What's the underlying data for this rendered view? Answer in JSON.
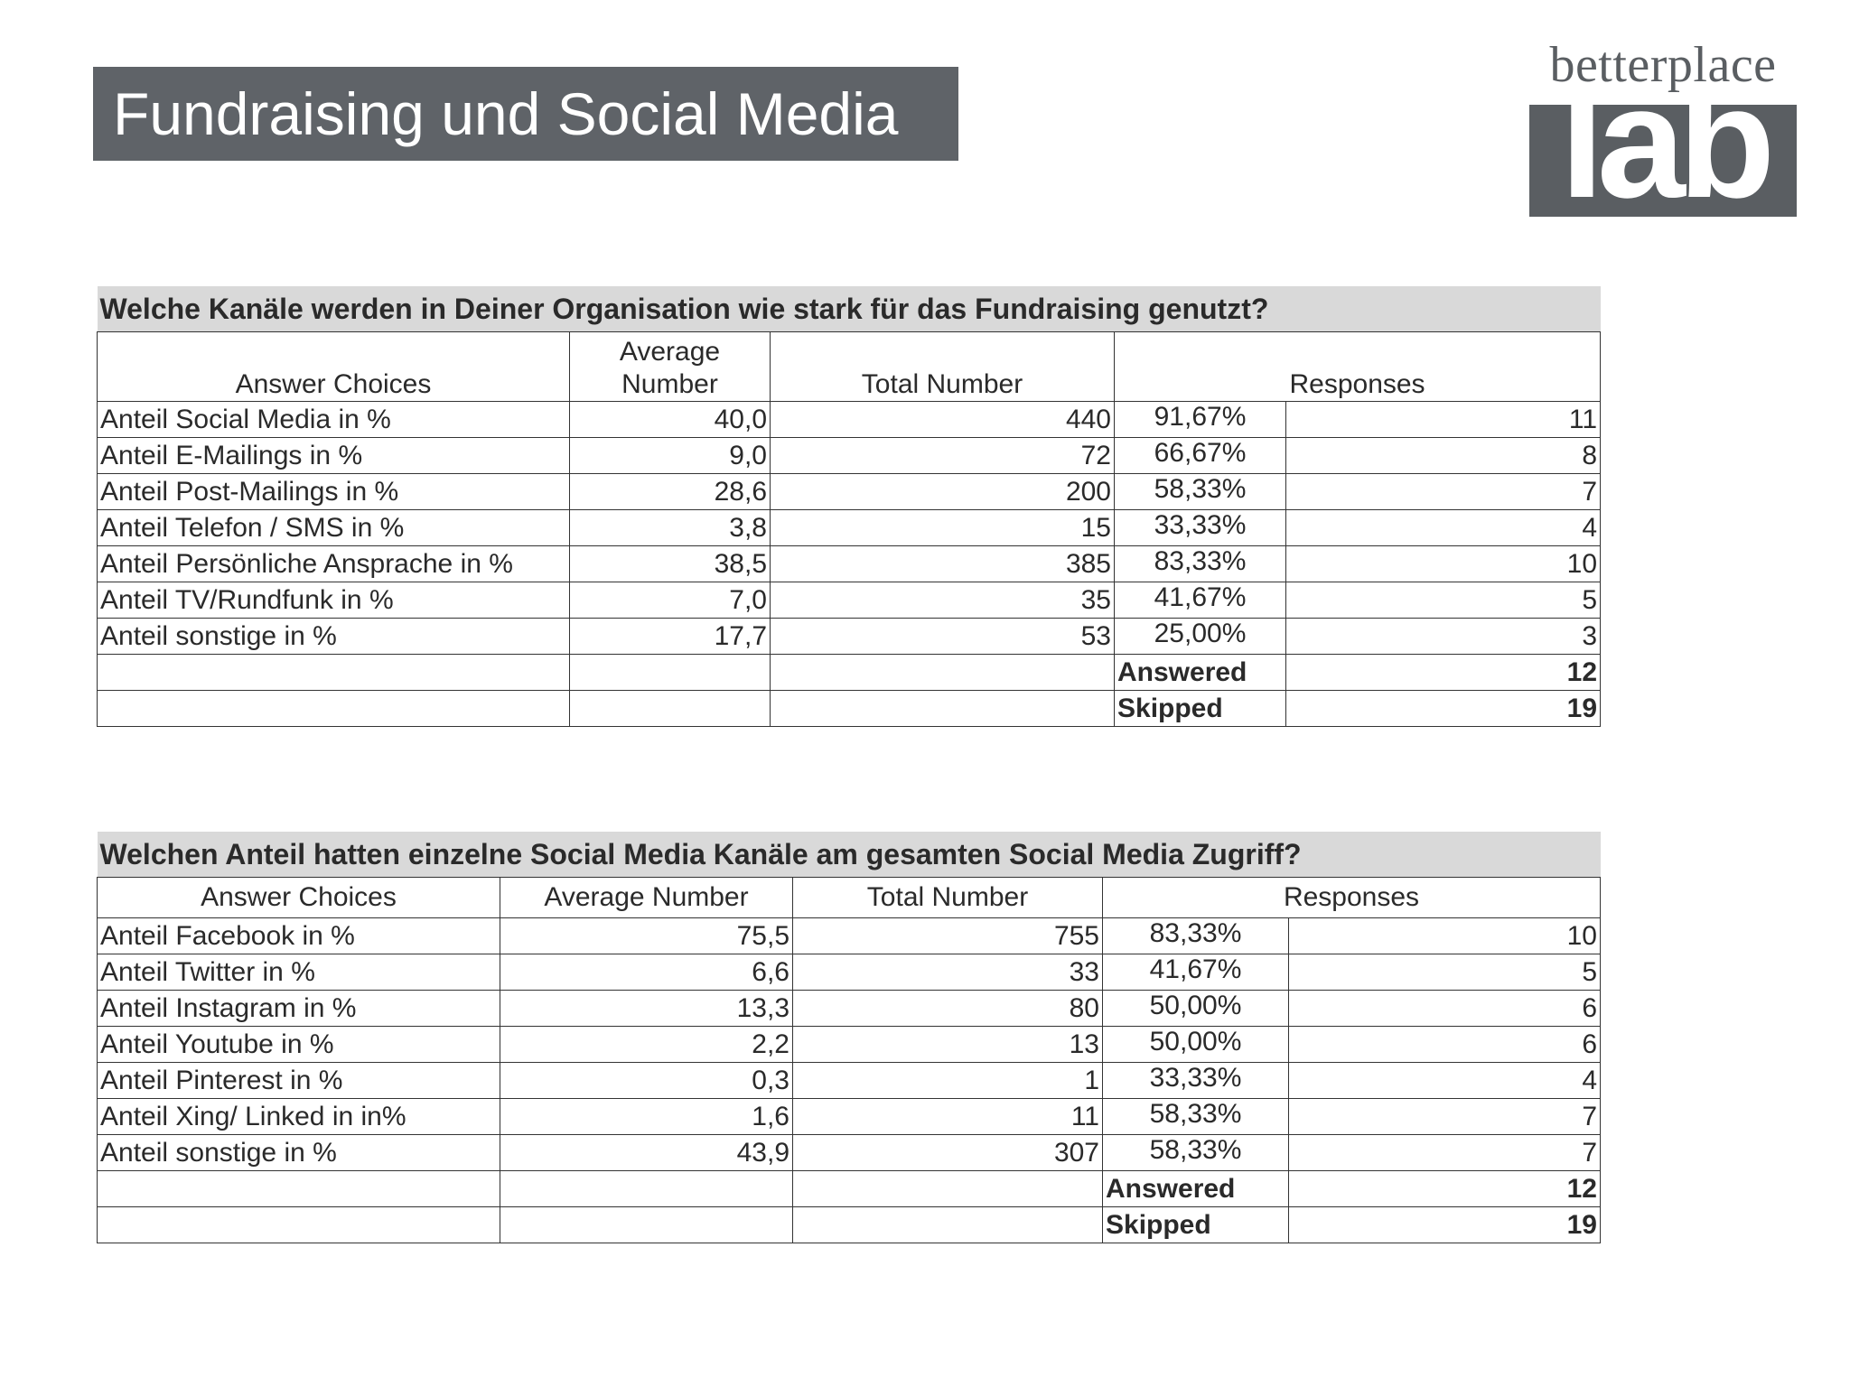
{
  "header": {
    "title": "Fundraising und Social Media"
  },
  "logo": {
    "word": "betterplace",
    "box_text": "lab"
  },
  "table1": {
    "question": "Welche Kanäle werden in Deiner Organisation wie stark für das Fundraising genutzt?",
    "headers": [
      "Answer Choices",
      "Average Number",
      "Total Number",
      "Responses"
    ],
    "rows": [
      {
        "choice": "Anteil Social Media in %",
        "avg": "40,0",
        "total": "440",
        "pct": "91,67%",
        "count": "11"
      },
      {
        "choice": "Anteil E-Mailings in %",
        "avg": "9,0",
        "total": "72",
        "pct": "66,67%",
        "count": "8"
      },
      {
        "choice": "Anteil Post-Mailings in %",
        "avg": "28,6",
        "total": "200",
        "pct": "58,33%",
        "count": "7"
      },
      {
        "choice": "Anteil Telefon / SMS in %",
        "avg": "3,8",
        "total": "15",
        "pct": "33,33%",
        "count": "4"
      },
      {
        "choice": "Anteil Persönliche Ansprache in %",
        "avg": "38,5",
        "total": "385",
        "pct": "83,33%",
        "count": "10"
      },
      {
        "choice": "Anteil TV/Rundfunk in %",
        "avg": "7,0",
        "total": "35",
        "pct": "41,67%",
        "count": "5"
      },
      {
        "choice": "Anteil sonstige in %",
        "avg": "17,7",
        "total": "53",
        "pct": "25,00%",
        "count": "3"
      }
    ],
    "answered_label": "Answered",
    "answered": "12",
    "skipped_label": "Skipped",
    "skipped": "19"
  },
  "table2": {
    "question": "Welchen Anteil hatten einzelne Social Media Kanäle am gesamten Social Media Zugriff?",
    "headers": [
      "Answer Choices",
      "Average Number",
      "Total Number",
      "Responses"
    ],
    "rows": [
      {
        "choice": "Anteil Facebook in %",
        "avg": "75,5",
        "total": "755",
        "pct": "83,33%",
        "count": "10"
      },
      {
        "choice": "Anteil Twitter in %",
        "avg": "6,6",
        "total": "33",
        "pct": "41,67%",
        "count": "5"
      },
      {
        "choice": "Anteil Instagram in %",
        "avg": "13,3",
        "total": "80",
        "pct": "50,00%",
        "count": "6"
      },
      {
        "choice": "Anteil Youtube in %",
        "avg": "2,2",
        "total": "13",
        "pct": "50,00%",
        "count": "6"
      },
      {
        "choice": "Anteil Pinterest in %",
        "avg": "0,3",
        "total": "1",
        "pct": "33,33%",
        "count": "4"
      },
      {
        "choice": "Anteil Xing/ Linked in in%",
        "avg": "1,6",
        "total": "11",
        "pct": "58,33%",
        "count": "7"
      },
      {
        "choice": "Anteil sonstige in %",
        "avg": "43,9",
        "total": "307",
        "pct": "58,33%",
        "count": "7"
      }
    ],
    "answered_label": "Answered",
    "answered": "12",
    "skipped_label": "Skipped",
    "skipped": "19"
  }
}
